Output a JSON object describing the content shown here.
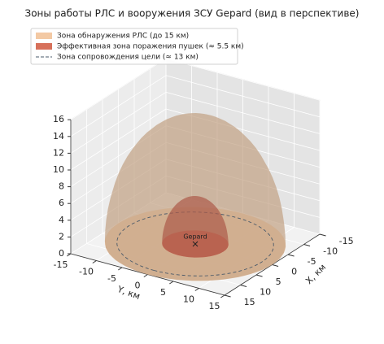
{
  "chart_data": {
    "type": "hemisphere3d",
    "title": "Зоны работы РЛС и вооружения ЗСУ Gepard (вид в перспективе)",
    "series": [
      {
        "name": "Зона обнаружения РЛС (до 15 км)",
        "color": "#f3c9a4",
        "radius": 15,
        "style": "dome"
      },
      {
        "name": "Эффективная зона поражения пушек (≈ 5.5 км)",
        "color": "#d7705a",
        "radius": 5.5,
        "style": "dome"
      },
      {
        "name": "Зона сопровождения цели (≈ 13 км)",
        "color": "#4a5a6a",
        "radius": 13,
        "style": "dashed"
      }
    ],
    "annotation": "Gepard",
    "xlabel": "X, км",
    "ylabel": "Y, км",
    "xlim": [
      -15,
      15
    ],
    "ylim": [
      -15,
      15
    ],
    "zlim": [
      0,
      16
    ],
    "xticks": [
      -15,
      -10,
      -5,
      0,
      5,
      10,
      15
    ],
    "yticks": [
      -15,
      -10,
      -5,
      0,
      5,
      10,
      15
    ],
    "zticks": [
      0,
      2,
      4,
      6,
      8,
      10,
      12,
      14,
      16
    ],
    "grid": true
  }
}
